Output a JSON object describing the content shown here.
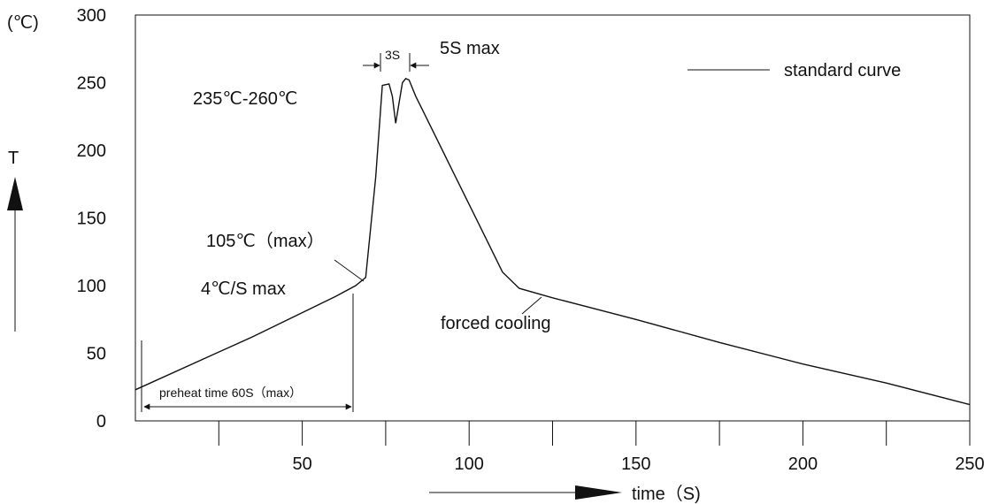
{
  "chart_data": {
    "type": "line",
    "title": "",
    "y_unit": "(℃)",
    "ylabel": "T",
    "xlabel": "time（S)",
    "xlim": [
      0,
      250
    ],
    "ylim": [
      0,
      300
    ],
    "x_tick_labels": [
      "50",
      "100",
      "150",
      "200",
      "250"
    ],
    "x_minor_ticks": [
      25,
      75,
      125,
      175,
      225
    ],
    "y_tick_labels": [
      "0",
      "50",
      "100",
      "150",
      "200",
      "250",
      "300"
    ],
    "series": [
      {
        "name": "standard curve",
        "x": [
          0,
          35,
          60,
          66,
          69,
          72,
          74,
          76,
          77,
          78,
          80,
          81,
          82,
          84,
          87,
          95,
          105,
          110,
          115,
          125,
          150,
          175,
          200,
          225,
          250
        ],
        "y": [
          23,
          62,
          92,
          100,
          106,
          180,
          248,
          249,
          240,
          220,
          250,
          253,
          252,
          240,
          225,
          185,
          135,
          110,
          98,
          91,
          75,
          58,
          42,
          28,
          12
        ]
      }
    ],
    "legend": {
      "label": "standard curve",
      "position": "top-right"
    },
    "annotations": {
      "peak_range": "235℃-260℃",
      "peak_max": "5S max",
      "peak_dwell": "3S",
      "ramp_temp": "105℃（max）",
      "ramp_rate": "4℃/S max",
      "cooling": "forced  cooling",
      "preheat": "preheat time 60S（max）"
    }
  }
}
